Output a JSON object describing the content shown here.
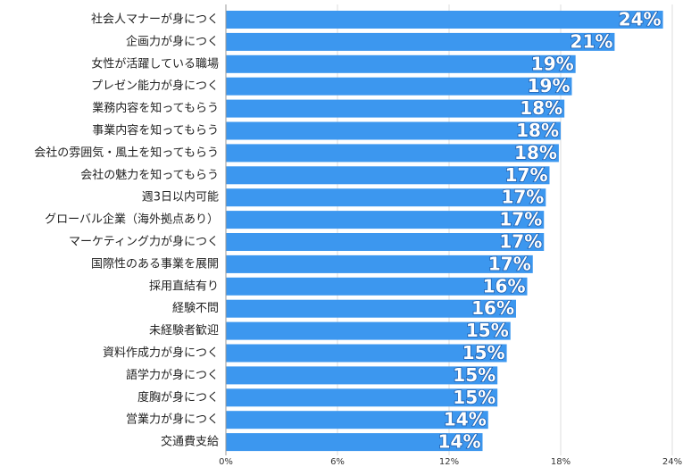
{
  "chart_data": {
    "type": "barh",
    "categories": [
      "社会人マナーが身につく",
      "企画力が身につく",
      "女性が活躍している職場",
      "プレゼン能力が身につく",
      "業務内容を知ってもらう",
      "事業内容を知ってもらう",
      "会社の雰囲気・風土を知ってもらう",
      "会社の魅力を知ってもらう",
      "週3日以内可能",
      "グローバル企業（海外拠点あり）",
      "マーケティング力が身につく",
      "国際性のある事業を展開",
      "採用直結有り",
      "経験不問",
      "未経験者歓迎",
      "資料作成力が身につく",
      "語学力が身につく",
      "度胸が身につく",
      "営業力が身につく",
      "交通費支給"
    ],
    "values": [
      23.5,
      20.9,
      18.8,
      18.6,
      18.2,
      18.0,
      17.9,
      17.4,
      17.2,
      17.1,
      17.1,
      16.5,
      16.2,
      15.6,
      15.3,
      15.1,
      14.6,
      14.6,
      14.1,
      13.8
    ],
    "value_labels": [
      "24%",
      "21%",
      "19%",
      "19%",
      "18%",
      "18%",
      "18%",
      "17%",
      "17%",
      "17%",
      "17%",
      "17%",
      "16%",
      "16%",
      "15%",
      "15%",
      "15%",
      "15%",
      "14%",
      "14%"
    ],
    "color": "#3c97ef",
    "xlim": [
      0,
      24
    ],
    "xticks": [
      {
        "value": 0,
        "label": "0%"
      },
      {
        "value": 6,
        "label": "6%"
      },
      {
        "value": 12,
        "label": "12%"
      },
      {
        "value": 18,
        "label": "18%"
      },
      {
        "value": 24,
        "label": "24%"
      }
    ],
    "grid": true
  }
}
